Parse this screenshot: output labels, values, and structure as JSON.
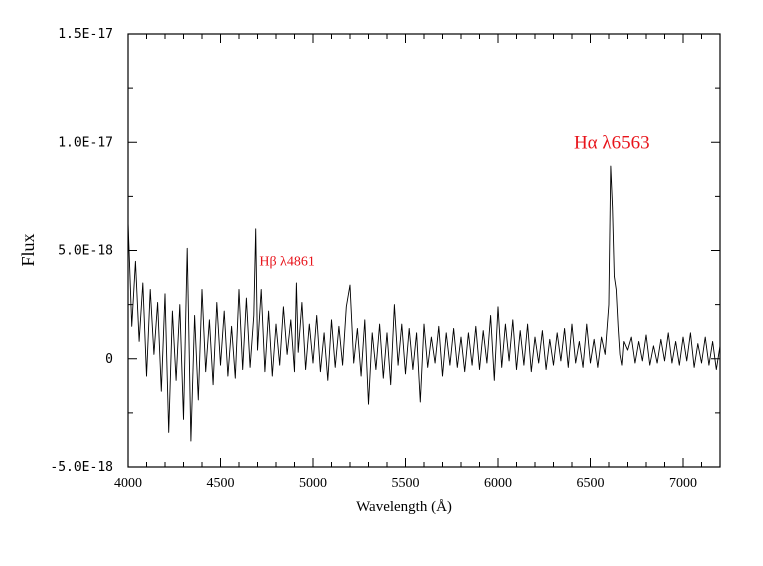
{
  "chart_data": {
    "type": "line",
    "title": "",
    "xlabel": "Wavelength (Å)",
    "ylabel": "Flux",
    "xlim": [
      4000,
      7200
    ],
    "ylim": [
      -5e-18,
      1.5e-17
    ],
    "grid": false,
    "legend": "none",
    "x_ticks": [
      {
        "value": 4000,
        "label": "4000"
      },
      {
        "value": 4500,
        "label": "4500"
      },
      {
        "value": 5000,
        "label": "5000"
      },
      {
        "value": 5500,
        "label": "5500"
      },
      {
        "value": 6000,
        "label": "6000"
      },
      {
        "value": 6500,
        "label": "6500"
      },
      {
        "value": 7000,
        "label": "7000"
      }
    ],
    "y_ticks": [
      {
        "value": -5e-18,
        "label": "-5.0E-18"
      },
      {
        "value": 0,
        "label": "0"
      },
      {
        "value": 5e-18,
        "label": "5.0E-18"
      },
      {
        "value": 1e-17,
        "label": "1.0E-17"
      },
      {
        "value": 1.5e-17,
        "label": "1.5E-17"
      }
    ],
    "annotations": [
      {
        "text": "Hβ λ4861",
        "x": 4860,
        "y": 4.3e-18,
        "size": "small",
        "color": "#e8141b"
      },
      {
        "text": "Hα λ6563",
        "x": 6615,
        "y": 9.7e-18,
        "size": "large",
        "color": "#e8141b"
      }
    ],
    "series_color": "#000000",
    "series": [
      {
        "x": [
          4000,
          4020,
          4040,
          4060,
          4080,
          4100,
          4120,
          4140,
          4160,
          4180,
          4200,
          4220,
          4240,
          4260,
          4280,
          4300,
          4320,
          4340,
          4360,
          4380,
          4400,
          4420,
          4440,
          4460,
          4480,
          4500,
          4520,
          4540,
          4560,
          4580,
          4600,
          4620,
          4640,
          4660,
          4680,
          4690,
          4700,
          4720,
          4740,
          4760,
          4780,
          4800,
          4820,
          4840,
          4860,
          4880,
          4900,
          4910,
          4920,
          4940,
          4960,
          4980,
          5000,
          5020,
          5040,
          5060,
          5080,
          5100,
          5120,
          5140,
          5160,
          5180,
          5200,
          5220,
          5240,
          5260,
          5280,
          5300,
          5320,
          5340,
          5360,
          5380,
          5400,
          5420,
          5440,
          5460,
          5480,
          5500,
          5520,
          5540,
          5560,
          5580,
          5600,
          5620,
          5640,
          5660,
          5680,
          5700,
          5720,
          5740,
          5760,
          5780,
          5800,
          5820,
          5840,
          5860,
          5880,
          5900,
          5920,
          5940,
          5960,
          5980,
          6000,
          6020,
          6040,
          6060,
          6080,
          6100,
          6120,
          6140,
          6160,
          6180,
          6200,
          6220,
          6240,
          6260,
          6280,
          6300,
          6320,
          6340,
          6360,
          6380,
          6400,
          6420,
          6440,
          6460,
          6480,
          6500,
          6520,
          6540,
          6560,
          6580,
          6600,
          6610,
          6620,
          6630,
          6640,
          6650,
          6660,
          6670,
          6680,
          6700,
          6720,
          6740,
          6760,
          6780,
          6800,
          6820,
          6840,
          6860,
          6880,
          6900,
          6920,
          6940,
          6960,
          6980,
          7000,
          7020,
          7040,
          7060,
          7080,
          7100,
          7120,
          7140,
          7160,
          7180,
          7200
        ],
        "values": [
          6.3e-18,
          1.5e-18,
          4.5e-18,
          8e-19,
          3.5e-18,
          -8e-19,
          3.2e-18,
          2e-19,
          2.6e-18,
          -1.5e-18,
          3e-18,
          -3.4e-18,
          2.2e-18,
          -1e-18,
          2.5e-18,
          -2.8e-18,
          5.1e-18,
          -3.8e-18,
          2e-18,
          -1.9e-18,
          3.2e-18,
          -6e-19,
          1.8e-18,
          -1.2e-18,
          2.6e-18,
          -3e-19,
          2.2e-18,
          -8e-19,
          1.5e-18,
          -9e-19,
          3.2e-18,
          -5e-19,
          2.8e-18,
          -4e-19,
          2e-18,
          6e-18,
          4e-19,
          3.2e-18,
          -6e-19,
          2.2e-18,
          -8e-19,
          1.6e-18,
          -3e-19,
          2.4e-18,
          2e-19,
          1.8e-18,
          -6e-19,
          3.5e-18,
          3e-19,
          2.6e-18,
          -5e-19,
          1.6e-18,
          -2e-19,
          2e-18,
          -6e-19,
          1.2e-18,
          -1e-18,
          1.8e-18,
          -4e-19,
          1.5e-18,
          -3e-19,
          2.4e-18,
          3.4e-18,
          -2e-19,
          1.4e-18,
          -8e-19,
          1.8e-18,
          -2.1e-18,
          1.2e-18,
          -5e-19,
          1.6e-18,
          -9e-19,
          1.2e-18,
          -1.2e-18,
          2.5e-18,
          -3e-19,
          1.6e-18,
          -7e-19,
          1.4e-18,
          -5e-19,
          1.2e-18,
          -2e-18,
          1.6e-18,
          -4e-19,
          1e-18,
          -2e-19,
          1.5e-18,
          -8e-19,
          1.2e-18,
          -3e-19,
          1.4e-18,
          -4e-19,
          1e-18,
          -6e-19,
          1.2e-18,
          -3e-19,
          1.5e-18,
          -5e-19,
          1.3e-18,
          -2e-19,
          2e-18,
          -1e-18,
          2.4e-18,
          -4e-19,
          1.6e-18,
          -1e-19,
          1.8e-18,
          -5e-19,
          1.3e-18,
          -3e-19,
          1.6e-18,
          -6e-19,
          1e-18,
          -2e-19,
          1.3e-18,
          -5e-19,
          9e-19,
          -3e-19,
          1.2e-18,
          -1e-19,
          1.4e-18,
          -4e-19,
          1.6e-18,
          -2e-19,
          8e-19,
          -4e-19,
          1.6e-18,
          -2e-19,
          9e-19,
          -4e-19,
          1e-18,
          2e-19,
          2.5e-18,
          8.9e-18,
          7e-18,
          3.8e-18,
          3.2e-18,
          1.5e-18,
          2e-19,
          -3e-19,
          8e-19,
          4e-19,
          1e-18,
          -2e-19,
          8e-19,
          -1e-19,
          1.1e-18,
          -3e-19,
          6e-19,
          -2e-19,
          9e-19,
          -1e-19,
          1.2e-18,
          -2e-19,
          8e-19,
          -3e-19,
          1e-18,
          -1e-19,
          1.2e-18,
          -4e-19,
          7e-19,
          -2e-19,
          1e-18,
          -3e-19,
          8e-19,
          -5e-19,
          6e-19
        ]
      }
    ]
  }
}
